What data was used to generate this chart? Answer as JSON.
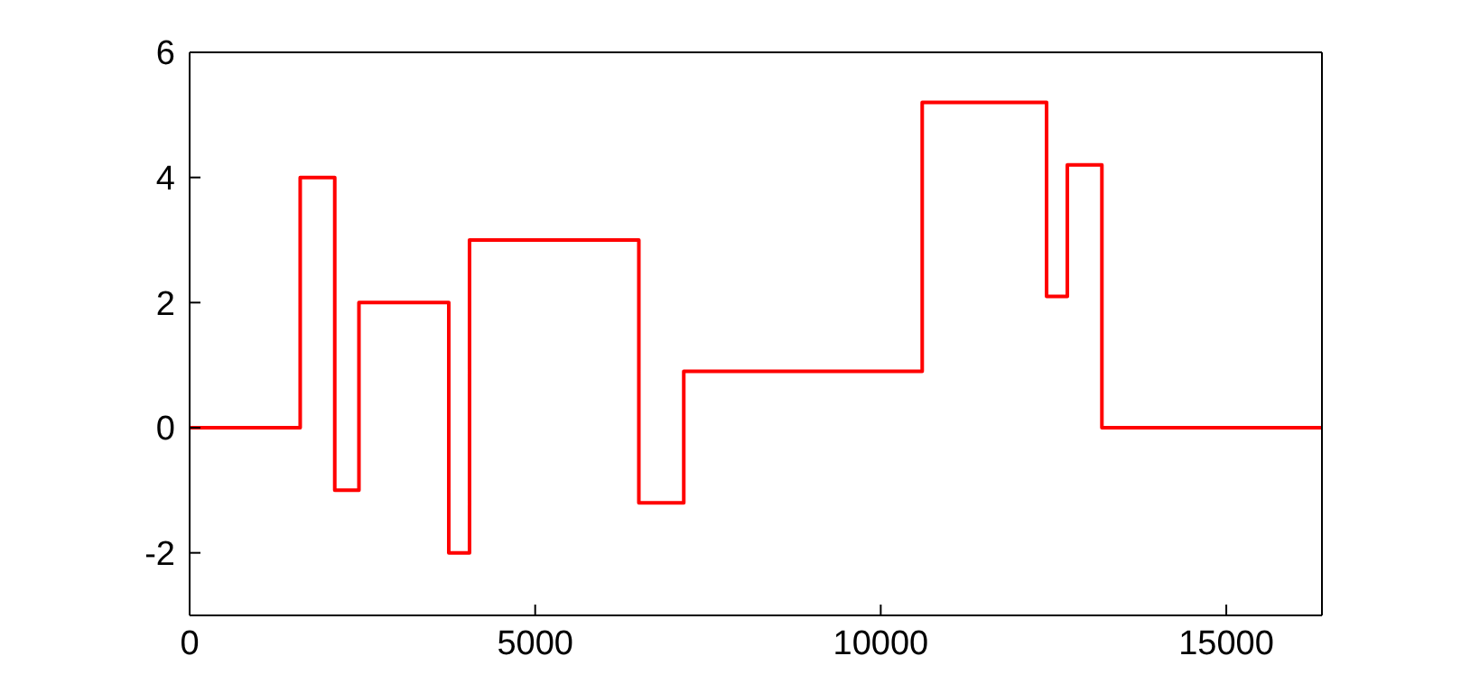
{
  "chart_data": {
    "type": "step",
    "x": [
      0,
      1600,
      2100,
      2450,
      3750,
      4050,
      6500,
      7150,
      10600,
      12400,
      12700,
      13200,
      16384
    ],
    "series": [
      {
        "color": "#ff0000",
        "values": [
          0,
          4,
          -1,
          2,
          -2,
          3,
          -1.2,
          0.9,
          5.2,
          2.1,
          4.2,
          0,
          0
        ]
      }
    ],
    "xlim": [
      0,
      16384
    ],
    "xticks": [
      0,
      5000,
      10000,
      15000
    ],
    "ylim": [
      -3,
      6
    ],
    "yticks": [
      -2,
      0,
      2,
      4,
      6
    ],
    "grid": false,
    "marker": "none",
    "line_style": "solid"
  }
}
